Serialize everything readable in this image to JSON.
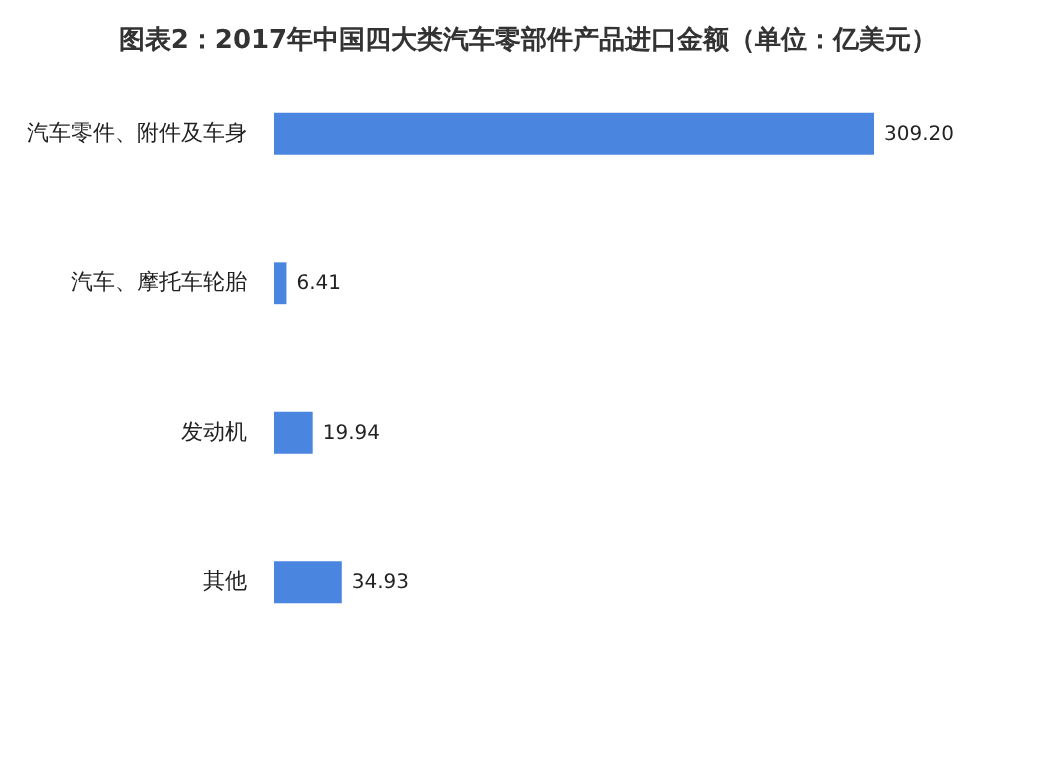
{
  "chart_data": {
    "type": "bar",
    "orientation": "horizontal",
    "title": "图表2：2017年中国四大类汽车零部件产品进口金额（单位：亿美元）",
    "categories": [
      "汽车零件、附件及车身",
      "汽车、摩托车轮胎",
      "发动机",
      "其他"
    ],
    "values": [
      309.2,
      6.41,
      19.94,
      34.93
    ],
    "value_labels": [
      "309.20",
      "6.41",
      "19.94",
      "34.93"
    ],
    "color": "#4a86e0",
    "grid": false
  }
}
